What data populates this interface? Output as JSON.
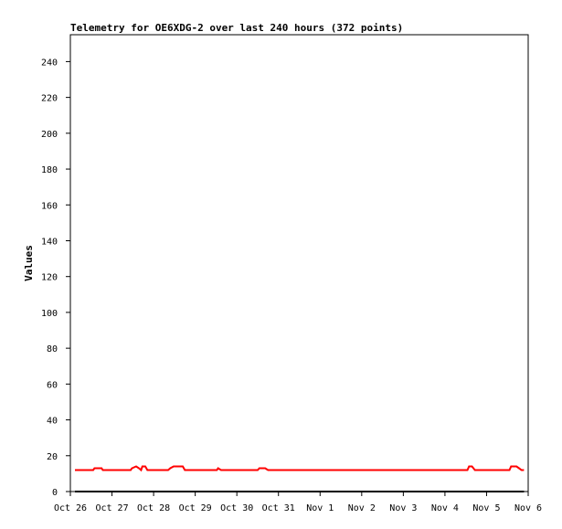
{
  "chart_data": {
    "type": "line",
    "title": "Telemetry for OE6XDG-2 over last 240 hours (372 points)",
    "xlabel": "",
    "ylabel": "Values",
    "xlim": [
      "Oct 26",
      "Nov 6"
    ],
    "ylim": [
      0,
      255
    ],
    "x_tick_labels": [
      "Oct 26",
      "Oct 27",
      "Oct 28",
      "Oct 29",
      "Oct 30",
      "Oct 31",
      "Nov 1",
      "Nov 2",
      "Nov 3",
      "Nov 4",
      "Nov 5",
      "Nov 6"
    ],
    "y_ticks": [
      0,
      20,
      40,
      60,
      80,
      100,
      120,
      140,
      160,
      180,
      200,
      220,
      240
    ],
    "grid": false,
    "series": [
      {
        "color": "#ff0000",
        "points": [
          [
            0.11,
            12
          ],
          [
            0.55,
            12
          ],
          [
            0.58,
            13
          ],
          [
            0.75,
            13
          ],
          [
            0.78,
            12
          ],
          [
            1.45,
            12
          ],
          [
            1.48,
            13
          ],
          [
            1.58,
            14
          ],
          [
            1.65,
            13
          ],
          [
            1.7,
            12
          ],
          [
            1.73,
            14
          ],
          [
            1.8,
            14
          ],
          [
            1.85,
            12
          ],
          [
            2.35,
            12
          ],
          [
            2.4,
            13
          ],
          [
            2.48,
            14
          ],
          [
            2.7,
            14
          ],
          [
            2.75,
            12
          ],
          [
            3.52,
            12
          ],
          [
            3.55,
            13
          ],
          [
            3.62,
            12
          ],
          [
            4.5,
            12
          ],
          [
            4.54,
            13
          ],
          [
            4.68,
            13
          ],
          [
            4.75,
            12
          ],
          [
            9.54,
            12
          ],
          [
            9.58,
            14
          ],
          [
            9.65,
            14
          ],
          [
            9.72,
            12
          ],
          [
            10.55,
            12
          ],
          [
            10.59,
            14
          ],
          [
            10.72,
            14
          ],
          [
            10.78,
            13
          ],
          [
            10.84,
            12
          ],
          [
            10.9,
            12
          ]
        ]
      },
      {
        "color": "#000000",
        "points": [
          [
            0.11,
            0
          ],
          [
            10.9,
            0
          ]
        ]
      }
    ]
  }
}
